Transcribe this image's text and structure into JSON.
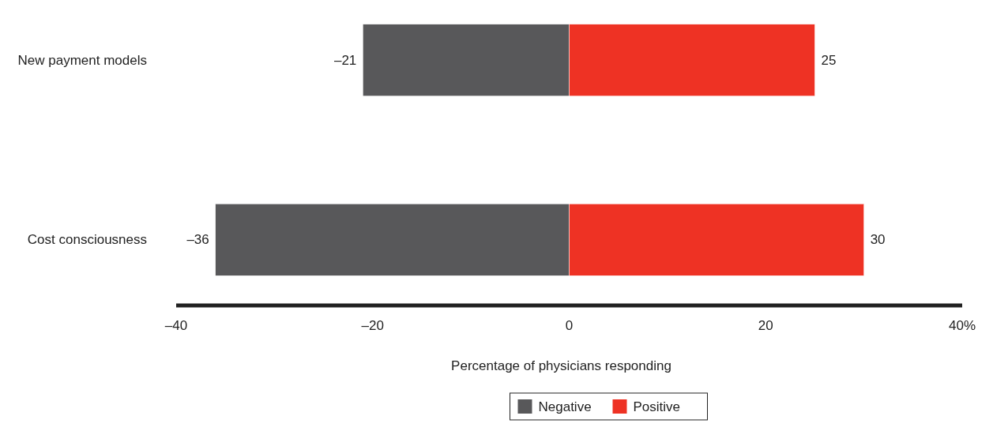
{
  "chart_data": {
    "type": "bar",
    "orientation": "horizontal",
    "stacked": true,
    "categories": [
      "New payment models",
      "Cost consciousness"
    ],
    "series": [
      {
        "name": "Negative",
        "color": "#58585a",
        "values": [
          -21,
          -36
        ],
        "value_labels": [
          "–21",
          "–36"
        ]
      },
      {
        "name": "Positive",
        "color": "#ee3224",
        "values": [
          25,
          30
        ],
        "value_labels": [
          "25",
          "30"
        ]
      }
    ],
    "xlabel": "Percentage of physicians responding",
    "xlim": [
      -40,
      40
    ],
    "xticks": [
      {
        "value": -40,
        "label": "–40"
      },
      {
        "value": -20,
        "label": "–20"
      },
      0,
      20,
      {
        "value": 40,
        "label": "40%"
      }
    ],
    "grid": false,
    "legend": "bottom"
  }
}
